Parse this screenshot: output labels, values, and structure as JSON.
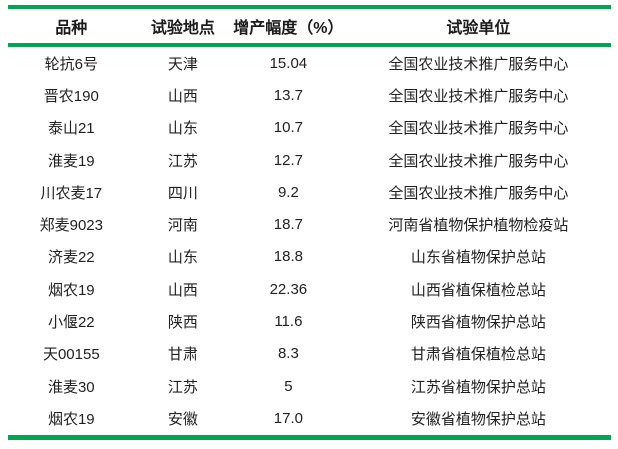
{
  "table": {
    "accent_color": "#00a651",
    "text_color": "#212121",
    "headers": [
      "品种",
      "试验地点",
      "增产幅度（%）",
      "试验单位"
    ],
    "rows": [
      [
        "轮抗6号",
        "天津",
        "15.04",
        "全国农业技术推广服务中心"
      ],
      [
        "晋农190",
        "山西",
        "13.7",
        "全国农业技术推广服务中心"
      ],
      [
        "泰山21",
        "山东",
        "10.7",
        "全国农业技术推广服务中心"
      ],
      [
        "淮麦19",
        "江苏",
        "12.7",
        "全国农业技术推广服务中心"
      ],
      [
        "川农麦17",
        "四川",
        "9.2",
        "全国农业技术推广服务中心"
      ],
      [
        "郑麦9023",
        "河南",
        "18.7",
        "河南省植物保护植物检疫站"
      ],
      [
        "济麦22",
        "山东",
        "18.8",
        "山东省植物保护总站"
      ],
      [
        "烟农19",
        "山西",
        "22.36",
        "山西省植保植检总站"
      ],
      [
        "小偃22",
        "陕西",
        "11.6",
        "陕西省植物保护总站"
      ],
      [
        "天00155",
        "甘肃",
        "8.3",
        "甘肃省植保植检总站"
      ],
      [
        "淮麦30",
        "江苏",
        "5",
        "江苏省植物保护总站"
      ],
      [
        "烟农19",
        "安徽",
        "17.0",
        "安徽省植物保护总站"
      ]
    ]
  }
}
